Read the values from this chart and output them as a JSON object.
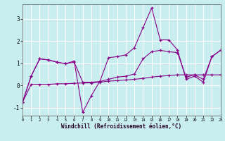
{
  "xlabel": "Windchill (Refroidissement éolien,°C)",
  "bg_color": "#c8eef0",
  "line_color": "#880088",
  "grid_color": "#ffffff",
  "xlim": [
    0,
    23
  ],
  "ylim": [
    -1.35,
    3.65
  ],
  "yticks": [
    -1,
    0,
    1,
    2,
    3
  ],
  "xticks": [
    0,
    1,
    2,
    3,
    4,
    5,
    6,
    7,
    8,
    9,
    10,
    11,
    12,
    13,
    14,
    15,
    16,
    17,
    18,
    19,
    20,
    21,
    22,
    23
  ],
  "s1_x": [
    0,
    1,
    2,
    3,
    4,
    5,
    6,
    7,
    8,
    9,
    10,
    11,
    12,
    13,
    14,
    15,
    16,
    17,
    18,
    19,
    20,
    21,
    22,
    23
  ],
  "s1_y": [
    -0.75,
    0.05,
    0.05,
    0.05,
    0.08,
    0.08,
    0.1,
    0.12,
    0.12,
    0.15,
    0.2,
    0.22,
    0.25,
    0.28,
    0.32,
    0.38,
    0.42,
    0.45,
    0.48,
    0.48,
    0.48,
    0.48,
    0.48,
    0.48
  ],
  "s2_x": [
    0,
    1,
    2,
    3,
    4,
    5,
    6,
    7,
    8,
    9,
    10,
    11,
    12,
    13,
    14,
    15,
    16,
    17,
    18,
    19,
    20,
    21,
    22,
    23
  ],
  "s2_y": [
    -0.75,
    0.42,
    1.2,
    1.15,
    1.05,
    0.98,
    1.1,
    -1.2,
    -0.45,
    0.2,
    1.25,
    1.3,
    1.38,
    1.7,
    2.6,
    3.48,
    2.05,
    2.05,
    1.6,
    0.28,
    0.42,
    0.15,
    1.3,
    1.58
  ],
  "s3_x": [
    0,
    1,
    2,
    3,
    4,
    5,
    6,
    7,
    8,
    9,
    10,
    11,
    12,
    13,
    14,
    15,
    16,
    17,
    18,
    19,
    20,
    21,
    22,
    23
  ],
  "s3_y": [
    -0.75,
    0.42,
    1.2,
    1.15,
    1.05,
    0.98,
    1.05,
    0.15,
    0.15,
    0.18,
    0.28,
    0.38,
    0.42,
    0.52,
    1.2,
    1.52,
    1.58,
    1.52,
    1.48,
    0.38,
    0.48,
    0.28,
    1.3,
    1.58
  ]
}
